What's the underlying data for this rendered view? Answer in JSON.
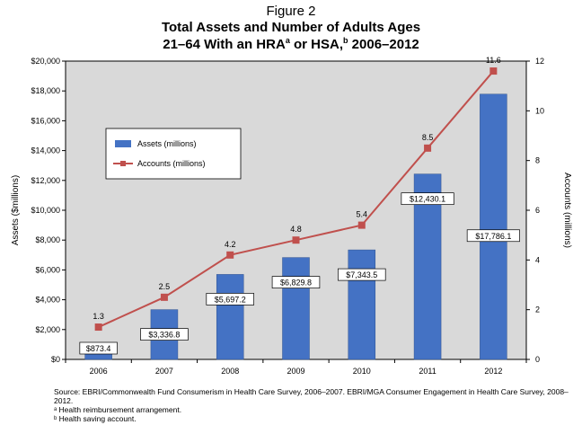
{
  "figure_label": "Figure 2",
  "title_line1": "Total Assets and Number of Adults Ages",
  "title_line2_parts": [
    "21–64 With an HRA",
    "a",
    " or HSA,",
    "b",
    " 2006–2012"
  ],
  "notes": {
    "source": "Source: EBRI/Commonwealth Fund Consumerism in Health Care Survey, 2006–2007. EBRI/MGA Consumer Engagement in Health Care Survey, 2008–2012.",
    "note_a": "ᵃ Health reimbursement arrangement.",
    "note_b": "ᵇ Health saving account."
  },
  "colors": {
    "bar": "#4472c4",
    "line": "#c0504d",
    "plot_bg": "#d9d9d9"
  },
  "chart_data": {
    "type": "bar+line",
    "categories": [
      "2006",
      "2007",
      "2008",
      "2009",
      "2010",
      "2011",
      "2012"
    ],
    "series": [
      {
        "name": "Assets (millions)",
        "type": "bar",
        "axis": "left",
        "values": [
          873.4,
          3336.8,
          5697.2,
          6829.8,
          7343.5,
          12430.1,
          17786.1
        ],
        "labels": [
          "$873.4",
          "$3,336.8",
          "$5,697.2",
          "$6,829.8",
          "$7,343.5",
          "$12,430.1",
          "$17,786.1"
        ]
      },
      {
        "name": "Accounts (millions)",
        "type": "line",
        "axis": "right",
        "values": [
          1.3,
          2.5,
          4.2,
          4.8,
          5.4,
          8.5,
          11.6
        ],
        "labels": [
          "1.3",
          "2.5",
          "4.2",
          "4.8",
          "5.4",
          "8.5",
          "11.6"
        ]
      }
    ],
    "ylabel_left": "Assets ($millions)",
    "ylabel_right": "Accounts (millions)",
    "ylim_left": [
      0,
      20000
    ],
    "ylim_right": [
      0,
      12
    ],
    "yticks_left": [
      "$0",
      "$2,000",
      "$4,000",
      "$6,000",
      "$8,000",
      "$10,000",
      "$12,000",
      "$14,000",
      "$16,000",
      "$18,000",
      "$20,000"
    ],
    "yticks_right": [
      "0",
      "2",
      "4",
      "6",
      "8",
      "10",
      "12"
    ],
    "grid": false,
    "legend_position": "upper-left"
  }
}
